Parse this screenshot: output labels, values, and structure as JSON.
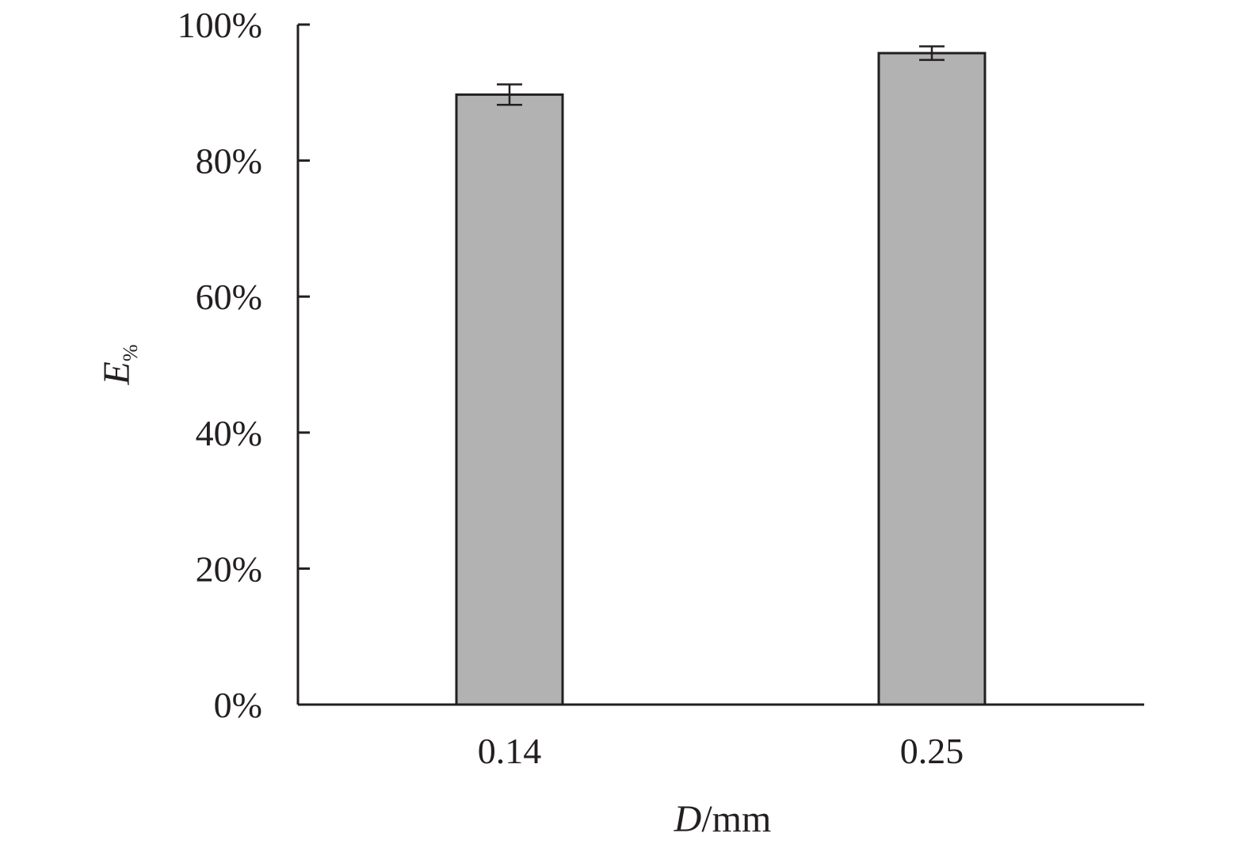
{
  "chart_data": {
    "type": "bar",
    "categories": [
      "0.14",
      "0.25"
    ],
    "series": [
      {
        "values": [
          0.897,
          0.958
        ],
        "error": [
          0.015,
          0.01
        ],
        "color": "#b2b2b2"
      }
    ],
    "ylim": [
      0,
      1.0
    ],
    "yticks": [
      0,
      0.2,
      0.4,
      0.6,
      0.8,
      1.0
    ],
    "ytick_labels": [
      "0%",
      "20%",
      "40%",
      "60%",
      "80%",
      "100%"
    ],
    "xlabel": {
      "italic": "D",
      "rest": "/mm"
    },
    "ylabel": {
      "main": "E",
      "sub": "%"
    },
    "grid": false,
    "axis_color": "#231f20"
  }
}
